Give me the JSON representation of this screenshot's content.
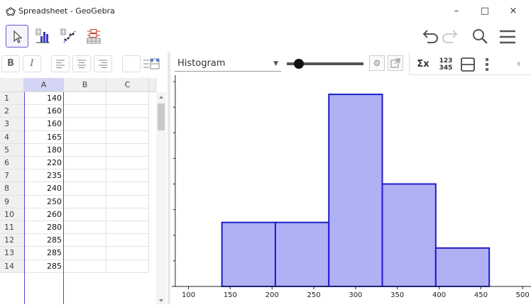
{
  "window": {
    "title": "Spreadsheet - GeoGebra",
    "minimize": "–",
    "maximize": "□",
    "close": "×"
  },
  "toolbar": {
    "tools": [
      "move-tool",
      "one-variable-analysis-tool",
      "two-variable-regression-tool",
      "multiple-variable-analysis-tool"
    ]
  },
  "stylebar": {
    "bold": "B",
    "italic": "I"
  },
  "spreadsheet": {
    "columns": [
      "A",
      "B",
      "C"
    ],
    "rows": [
      {
        "n": "1",
        "a": "140"
      },
      {
        "n": "2",
        "a": "160"
      },
      {
        "n": "3",
        "a": "160"
      },
      {
        "n": "4",
        "a": "165"
      },
      {
        "n": "5",
        "a": "180"
      },
      {
        "n": "6",
        "a": "220"
      },
      {
        "n": "7",
        "a": "235"
      },
      {
        "n": "8",
        "a": "240"
      },
      {
        "n": "9",
        "a": "250"
      },
      {
        "n": "10",
        "a": "260"
      },
      {
        "n": "11",
        "a": "280"
      },
      {
        "n": "12",
        "a": "285"
      },
      {
        "n": "13",
        "a": "285"
      },
      {
        "n": "14",
        "a": "285"
      }
    ]
  },
  "graphics": {
    "chart_type": "Histogram",
    "stat_sigma": "Σx",
    "stat_table_top": "123",
    "stat_table_bottom": "345"
  },
  "colors": {
    "accent": "#6557d2",
    "bar_fill": "#b0b0f5",
    "bar_stroke": "#1c1ccc"
  },
  "chart_data": {
    "type": "bar",
    "title": "",
    "xlabel": "",
    "ylabel": "",
    "xlim": [
      80,
      510
    ],
    "ylim": [
      0,
      16.5
    ],
    "x_ticks": [
      100,
      150,
      200,
      250,
      300,
      350,
      400,
      450,
      500
    ],
    "y_ticks": [
      0,
      2,
      4,
      6,
      8,
      10,
      12,
      14,
      16
    ],
    "bins": [
      {
        "start": 140,
        "end": 204,
        "value": 5
      },
      {
        "start": 204,
        "end": 268,
        "value": 5
      },
      {
        "start": 268,
        "end": 332,
        "value": 15
      },
      {
        "start": 332,
        "end": 396,
        "value": 8
      },
      {
        "start": 396,
        "end": 460,
        "value": 3
      }
    ]
  }
}
